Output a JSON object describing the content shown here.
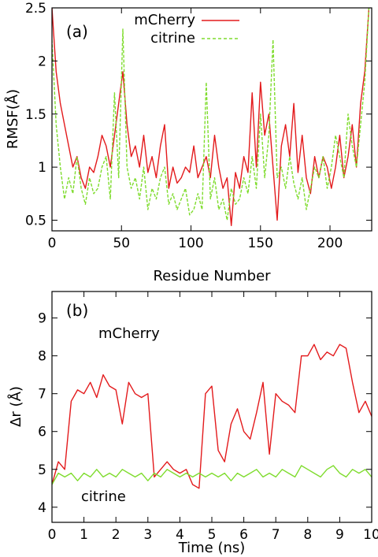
{
  "colors": {
    "mcherry": "#e31a1c",
    "citrine": "#7fdc2e"
  },
  "chart_data": [
    {
      "type": "line",
      "panel_label": "(a)",
      "xlabel": "Residue Number",
      "ylabel": "RMSF(Å)",
      "xlim": [
        0,
        230
      ],
      "ylim": [
        0.4,
        2.5
      ],
      "xticks": [
        "0",
        "50",
        "100",
        "150",
        "200"
      ],
      "yticks": [
        "0.5",
        "1",
        "1.5",
        "2",
        "2.5"
      ],
      "grid": false,
      "legend": "top-center",
      "series": [
        {
          "name": "mCherry",
          "color": "#e31a1c",
          "style": "solid",
          "x": [
            0,
            3,
            6,
            9,
            12,
            15,
            18,
            21,
            24,
            27,
            30,
            33,
            36,
            39,
            42,
            45,
            48,
            51,
            54,
            57,
            60,
            63,
            66,
            69,
            72,
            75,
            78,
            81,
            84,
            87,
            90,
            93,
            96,
            99,
            102,
            105,
            108,
            111,
            114,
            117,
            120,
            123,
            126,
            129,
            132,
            135,
            138,
            141,
            144,
            147,
            150,
            153,
            156,
            159,
            162,
            165,
            168,
            171,
            174,
            177,
            180,
            183,
            186,
            189,
            192,
            195,
            198,
            201,
            204,
            207,
            210,
            213,
            216,
            219,
            222,
            225,
            228
          ],
          "values": [
            2.5,
            1.9,
            1.6,
            1.4,
            1.2,
            1.0,
            1.1,
            0.9,
            0.8,
            1.0,
            0.95,
            1.1,
            1.3,
            1.2,
            1.0,
            1.3,
            1.6,
            1.9,
            1.4,
            1.1,
            1.2,
            1.0,
            1.3,
            0.95,
            1.1,
            0.9,
            1.2,
            1.4,
            0.8,
            1.0,
            0.85,
            0.9,
            1.0,
            0.95,
            1.2,
            0.9,
            1.0,
            1.1,
            0.9,
            1.3,
            1.0,
            0.8,
            0.9,
            0.45,
            0.95,
            0.8,
            1.1,
            0.95,
            1.7,
            1.0,
            1.8,
            1.3,
            1.5,
            1.0,
            0.5,
            1.2,
            1.4,
            1.1,
            1.6,
            0.95,
            1.3,
            0.9,
            0.75,
            1.1,
            0.9,
            1.1,
            1.0,
            0.8,
            1.0,
            1.3,
            0.9,
            1.1,
            1.4,
            1.0,
            1.6,
            1.9,
            2.5
          ]
        },
        {
          "name": "citrine",
          "color": "#7fdc2e",
          "style": "dashed",
          "x": [
            0,
            3,
            6,
            9,
            12,
            15,
            18,
            21,
            24,
            27,
            30,
            33,
            36,
            39,
            42,
            45,
            48,
            51,
            54,
            57,
            60,
            63,
            66,
            69,
            72,
            75,
            78,
            81,
            84,
            87,
            90,
            93,
            96,
            99,
            102,
            105,
            108,
            111,
            114,
            117,
            120,
            123,
            126,
            129,
            132,
            135,
            138,
            141,
            144,
            147,
            150,
            153,
            156,
            159,
            162,
            165,
            168,
            171,
            174,
            177,
            180,
            183,
            186,
            189,
            192,
            195,
            198,
            201,
            204,
            207,
            210,
            213,
            216,
            219,
            222,
            225,
            228
          ],
          "values": [
            2.2,
            1.4,
            1.0,
            0.7,
            0.9,
            0.75,
            1.1,
            0.8,
            0.65,
            0.9,
            0.75,
            0.8,
            1.0,
            1.1,
            0.7,
            1.7,
            0.9,
            2.3,
            1.0,
            0.8,
            0.9,
            0.7,
            1.0,
            0.6,
            0.8,
            0.7,
            0.9,
            1.0,
            0.65,
            0.75,
            0.6,
            0.7,
            0.8,
            0.55,
            0.6,
            0.75,
            0.6,
            1.8,
            0.7,
            0.9,
            0.6,
            0.7,
            0.5,
            0.8,
            0.65,
            0.7,
            0.9,
            0.75,
            1.1,
            0.8,
            1.5,
            0.9,
            1.3,
            2.2,
            0.9,
            1.0,
            0.8,
            1.1,
            0.85,
            0.7,
            0.9,
            0.6,
            0.8,
            1.0,
            0.9,
            1.1,
            0.8,
            1.0,
            1.3,
            1.1,
            0.9,
            1.5,
            1.2,
            1.0,
            1.4,
            1.8,
            2.5
          ]
        }
      ]
    },
    {
      "type": "line",
      "panel_label": "(b)",
      "xlabel": "Time (ns)",
      "ylabel": "Δr (Å)",
      "xlim": [
        0,
        10
      ],
      "ylim": [
        3.6,
        9.7
      ],
      "xticks": [
        "0",
        "1",
        "2",
        "3",
        "4",
        "5",
        "6",
        "7",
        "8",
        "9",
        "10"
      ],
      "yticks": [
        "4",
        "5",
        "6",
        "7",
        "8",
        "9"
      ],
      "grid": false,
      "annotations": [
        "mCherry",
        "citrine"
      ],
      "series": [
        {
          "name": "mCherry",
          "color": "#e31a1c",
          "x": [
            0,
            0.2,
            0.4,
            0.6,
            0.8,
            1.0,
            1.2,
            1.4,
            1.6,
            1.8,
            2.0,
            2.2,
            2.4,
            2.6,
            2.8,
            3.0,
            3.2,
            3.4,
            3.6,
            3.8,
            4.0,
            4.2,
            4.4,
            4.6,
            4.8,
            5.0,
            5.2,
            5.4,
            5.6,
            5.8,
            6.0,
            6.2,
            6.4,
            6.6,
            6.8,
            7.0,
            7.2,
            7.4,
            7.6,
            7.8,
            8.0,
            8.2,
            8.4,
            8.6,
            8.8,
            9.0,
            9.2,
            9.4,
            9.6,
            9.8,
            10.0
          ],
          "values": [
            4.6,
            5.2,
            5.0,
            6.8,
            7.1,
            7.0,
            7.3,
            6.9,
            7.5,
            7.2,
            7.1,
            6.2,
            7.3,
            7.0,
            6.9,
            7.0,
            4.8,
            5.0,
            5.2,
            5.0,
            4.9,
            5.0,
            4.6,
            4.5,
            7.0,
            7.2,
            5.5,
            5.2,
            6.2,
            6.6,
            6.0,
            5.8,
            6.5,
            7.3,
            5.4,
            7.0,
            6.8,
            6.7,
            6.5,
            8.0,
            8.0,
            8.3,
            7.9,
            8.1,
            8.0,
            8.3,
            8.2,
            7.3,
            6.5,
            6.8,
            6.4
          ]
        },
        {
          "name": "citrine",
          "color": "#7fdc2e",
          "x": [
            0,
            0.2,
            0.4,
            0.6,
            0.8,
            1.0,
            1.2,
            1.4,
            1.6,
            1.8,
            2.0,
            2.2,
            2.4,
            2.6,
            2.8,
            3.0,
            3.2,
            3.4,
            3.6,
            3.8,
            4.0,
            4.2,
            4.4,
            4.6,
            4.8,
            5.0,
            5.2,
            5.4,
            5.6,
            5.8,
            6.0,
            6.2,
            6.4,
            6.6,
            6.8,
            7.0,
            7.2,
            7.4,
            7.6,
            7.8,
            8.0,
            8.2,
            8.4,
            8.6,
            8.8,
            9.0,
            9.2,
            9.4,
            9.6,
            9.8,
            10.0
          ],
          "values": [
            4.6,
            4.9,
            4.8,
            4.9,
            4.7,
            4.9,
            4.8,
            5.0,
            4.8,
            4.9,
            4.8,
            5.0,
            4.9,
            4.8,
            4.9,
            4.7,
            4.9,
            4.8,
            5.0,
            4.9,
            4.8,
            4.9,
            4.8,
            4.9,
            4.8,
            4.9,
            4.8,
            4.9,
            4.7,
            4.9,
            4.8,
            4.9,
            5.0,
            4.8,
            4.9,
            4.8,
            5.0,
            4.9,
            4.8,
            5.1,
            5.0,
            4.9,
            4.8,
            5.0,
            5.1,
            4.9,
            4.8,
            5.0,
            4.9,
            5.0,
            4.8
          ]
        }
      ]
    }
  ]
}
